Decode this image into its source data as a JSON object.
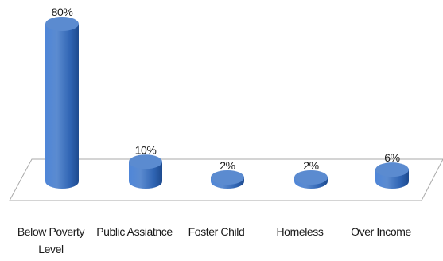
{
  "chart_data": {
    "type": "bar",
    "categories": [
      "Below Poverty Level",
      "Public Assiatnce",
      "Foster Child",
      "Homeless",
      "Over Income"
    ],
    "category_lines": [
      [
        "Below Poverty",
        "Level"
      ],
      [
        "Public Assiatnce"
      ],
      [
        "Foster Child"
      ],
      [
        "Homeless"
      ],
      [
        "Over Income"
      ]
    ],
    "values": [
      80,
      10,
      2,
      2,
      6
    ],
    "data_labels": [
      "80%",
      "10%",
      "2%",
      "2%",
      "6%"
    ],
    "ylim": [
      0,
      80
    ],
    "grid": false,
    "legend": "none",
    "style": "3d-cylinder",
    "colors": {
      "bar_top": "#5b8bd0",
      "bar_light": "#4f86d8",
      "bar_mid": "#2f64b3",
      "bar_dark": "#1d4a8e",
      "floor_edge": "#a9a9a9"
    }
  }
}
